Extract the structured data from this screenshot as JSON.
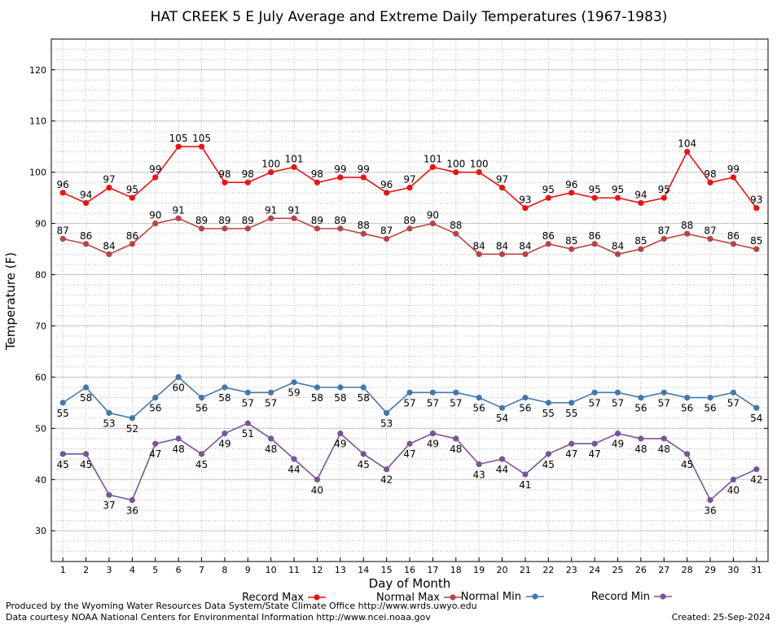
{
  "chart_data": {
    "type": "line",
    "title": "HAT CREEK 5 E July Average and Extreme Daily Temperatures (1967-1983)",
    "xlabel": "Day of Month",
    "ylabel": "Temperature (F)",
    "ylim": [
      24,
      126
    ],
    "y_ticks": [
      30,
      40,
      50,
      60,
      70,
      80,
      90,
      100,
      110,
      120
    ],
    "grid": true,
    "legend_position": "bottom",
    "x": [
      1,
      2,
      3,
      4,
      5,
      6,
      7,
      8,
      9,
      10,
      11,
      12,
      13,
      14,
      15,
      16,
      17,
      18,
      19,
      20,
      21,
      22,
      23,
      24,
      25,
      26,
      27,
      28,
      29,
      30,
      31
    ],
    "series": [
      {
        "name": "Record Max",
        "color": "#ee1111",
        "label_position": "above",
        "values": [
          96,
          94,
          97,
          95,
          99,
          105,
          105,
          98,
          98,
          100,
          101,
          98,
          99,
          99,
          96,
          97,
          101,
          100,
          100,
          97,
          93,
          95,
          96,
          95,
          95,
          94,
          95,
          104,
          98,
          99,
          93
        ]
      },
      {
        "name": "Normal Max",
        "color": "#b84444",
        "label_position": "above",
        "values": [
          87,
          86,
          84,
          86,
          90,
          91,
          89,
          89,
          89,
          91,
          91,
          89,
          89,
          88,
          87,
          89,
          90,
          88,
          84,
          84,
          84,
          86,
          85,
          86,
          84,
          85,
          87,
          88,
          87,
          86,
          85
        ]
      },
      {
        "name": "Normal Min",
        "color": "#4477aa",
        "label_position": "below",
        "values": [
          55,
          58,
          53,
          52,
          56,
          60,
          56,
          58,
          57,
          57,
          59,
          58,
          58,
          58,
          53,
          57,
          57,
          57,
          56,
          54,
          56,
          55,
          55,
          57,
          57,
          56,
          57,
          56,
          56,
          57,
          54
        ]
      },
      {
        "name": "Record Min",
        "color": "#775599",
        "label_position": "below",
        "values": [
          45,
          45,
          37,
          36,
          47,
          48,
          45,
          49,
          51,
          48,
          44,
          40,
          49,
          45,
          42,
          47,
          49,
          48,
          43,
          44,
          41,
          45,
          47,
          47,
          49,
          48,
          48,
          45,
          36,
          40,
          42
        ]
      }
    ]
  },
  "footer": {
    "produced_by": "Produced by the Wyoming Water Resources Data System/State Climate Office http://www.wrds.uwyo.edu",
    "data_courtesy": "Data courtesy NOAA National Centers for Environmental Information http://www.ncei.noaa.gov",
    "created": "Created:  25-Sep-2024"
  }
}
